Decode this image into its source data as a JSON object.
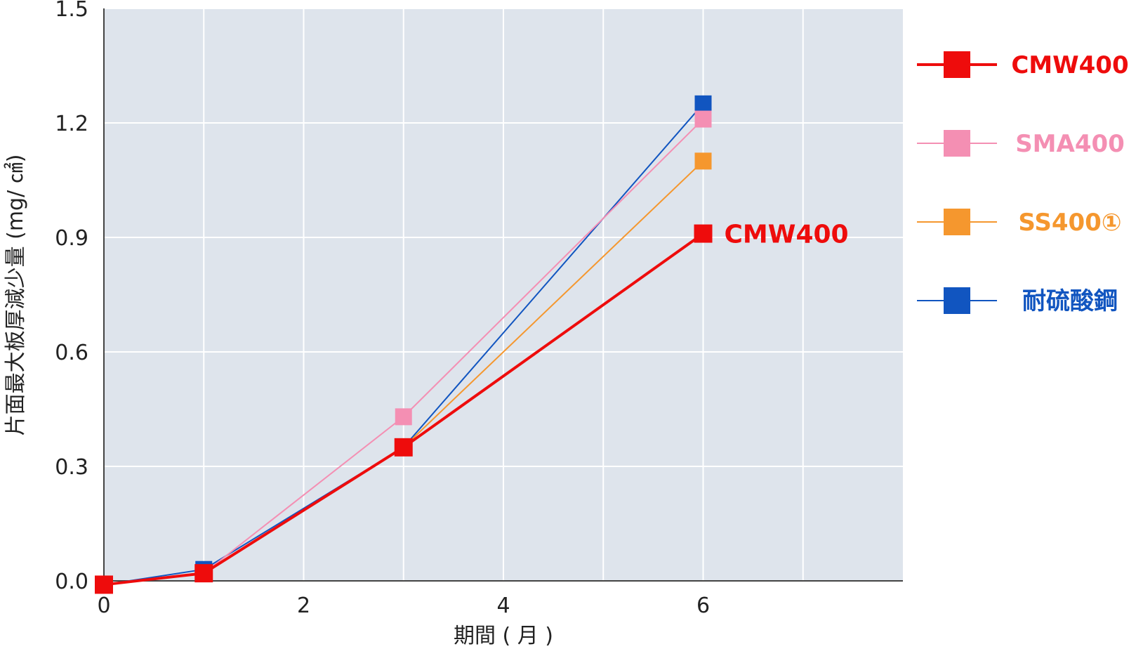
{
  "chart_data": {
    "type": "line",
    "title": "",
    "xlabel": "期間 ( 月 )",
    "ylabel": "片面最大板厚減少量 (mg/ ㎠)",
    "xlim": [
      0,
      8
    ],
    "ylim": [
      0,
      1.5
    ],
    "xticks": [
      0,
      2,
      4,
      6
    ],
    "xtick_labels": [
      "0",
      "2",
      "4",
      "6"
    ],
    "yticks": [
      0,
      0.3,
      0.6,
      0.9,
      1.2,
      1.5
    ],
    "ytick_labels": [
      "0.0",
      "0.3",
      "0.6",
      "0.9",
      "1.2",
      "1.5"
    ],
    "grid": true,
    "legend_position": "right",
    "series": [
      {
        "name": "耐硫酸鋼",
        "color": "#1155c0",
        "x": [
          0,
          1,
          3,
          6
        ],
        "y": [
          -0.01,
          0.03,
          0.35,
          1.25
        ]
      },
      {
        "name": "SS400①",
        "color": "#f5972e",
        "x": [
          0,
          1,
          3,
          6
        ],
        "y": [
          -0.01,
          0.02,
          0.35,
          1.1
        ]
      },
      {
        "name": "SMA400",
        "color": "#f48fb3",
        "x": [
          0,
          1,
          3,
          6
        ],
        "y": [
          -0.01,
          0.02,
          0.43,
          1.21
        ]
      },
      {
        "name": "CMW400",
        "color": "#ee0c0c",
        "x": [
          0,
          1,
          3,
          6
        ],
        "y": [
          -0.01,
          0.02,
          0.35,
          0.91
        ]
      }
    ],
    "legend_order": [
      "CMW400",
      "SMA400",
      "SS400①",
      "耐硫酸鋼"
    ],
    "annotations": [
      {
        "text": "CMW400",
        "series": "CMW400",
        "x": 6,
        "y": 0.91,
        "color": "#ee0c0c"
      }
    ]
  }
}
